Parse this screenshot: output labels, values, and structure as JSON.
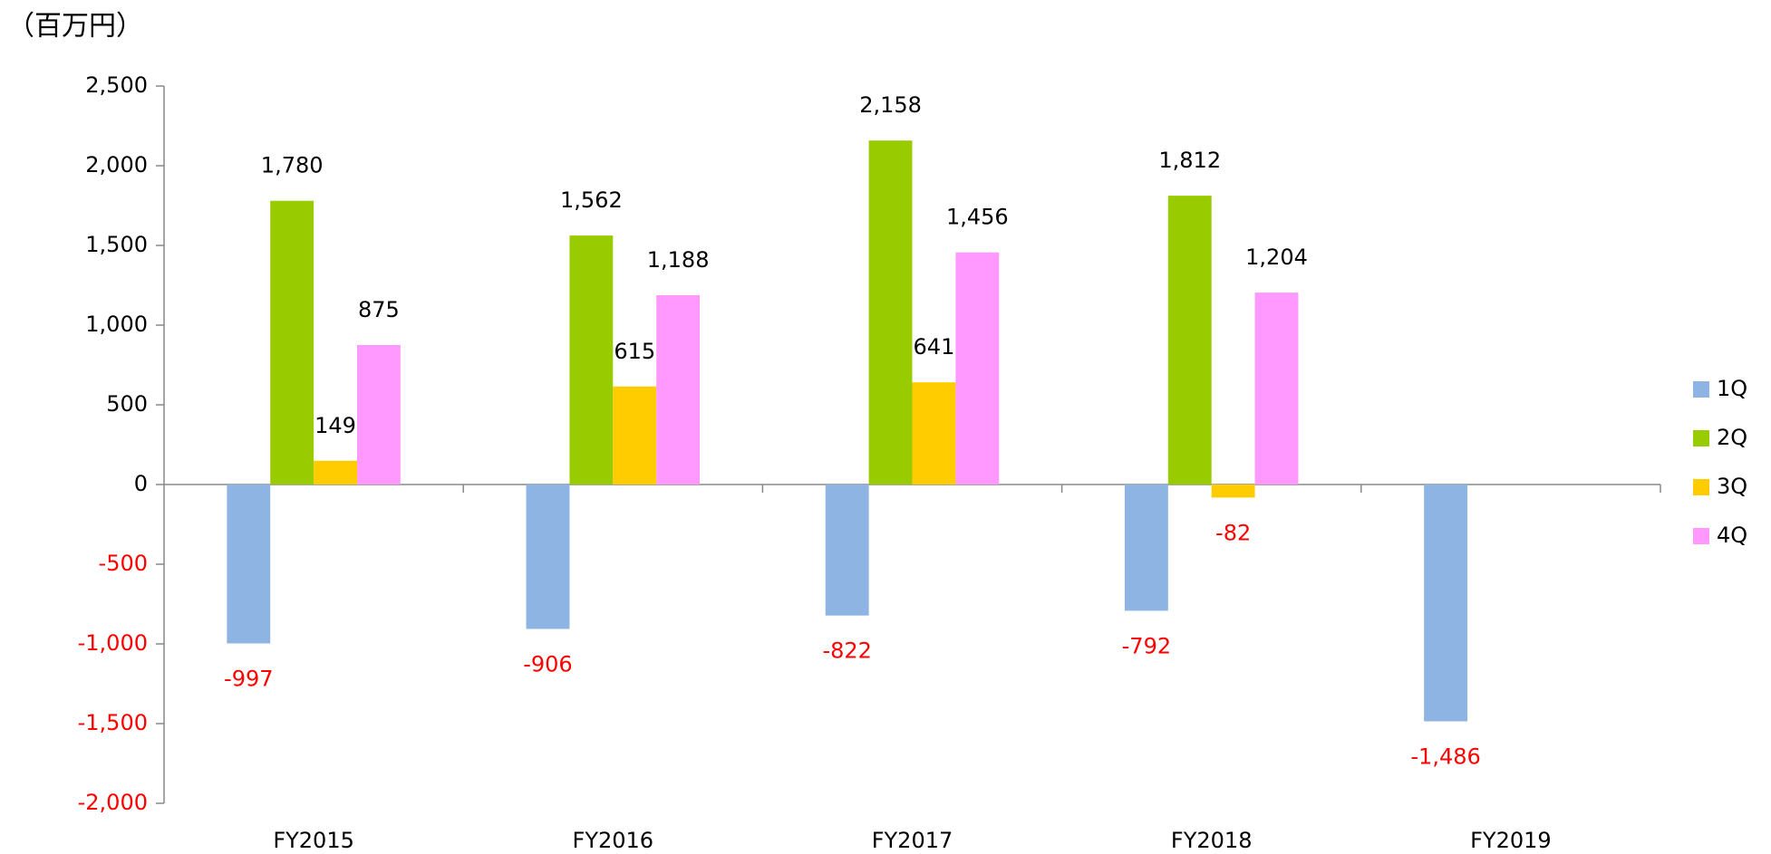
{
  "chart_data": {
    "type": "bar",
    "y_label": "（百万円）",
    "categories": [
      "FY2015",
      "FY2016",
      "FY2017",
      "FY2018",
      "FY2019"
    ],
    "series": [
      {
        "name": "1Q",
        "color": "#8eb4e3",
        "values": [
          -997,
          -906,
          -822,
          -792,
          -1486
        ],
        "value_labels": [
          "-997",
          "-906",
          "-822",
          "-792",
          "-1,486"
        ]
      },
      {
        "name": "2Q",
        "color": "#99cc00",
        "values": [
          1780,
          1562,
          2158,
          1812,
          null
        ],
        "value_labels": [
          "1,780",
          "1,562",
          "2,158",
          "1,812",
          null
        ]
      },
      {
        "name": "3Q",
        "color": "#ffcc00",
        "values": [
          149,
          615,
          641,
          -82,
          null
        ],
        "value_labels": [
          "149",
          "615",
          "641",
          "-82",
          null
        ]
      },
      {
        "name": "4Q",
        "color": "#ff99ff",
        "values": [
          875,
          1188,
          1456,
          1204,
          null
        ],
        "value_labels": [
          "875",
          "1,188",
          "1,456",
          "1,204",
          null
        ]
      }
    ],
    "ylim": [
      -2000,
      2500
    ],
    "yticks": [
      {
        "value": -2000,
        "label": "-2,000"
      },
      {
        "value": -1500,
        "label": "-1,500"
      },
      {
        "value": -1000,
        "label": "-1,000"
      },
      -500,
      0,
      500,
      {
        "value": 1000,
        "label": "1,000"
      },
      {
        "value": 1500,
        "label": "1,500"
      },
      {
        "value": 2000,
        "label": "2,000"
      },
      {
        "value": 2500,
        "label": "2,500"
      }
    ],
    "negative_color": "#ff0000",
    "legend": "right"
  }
}
